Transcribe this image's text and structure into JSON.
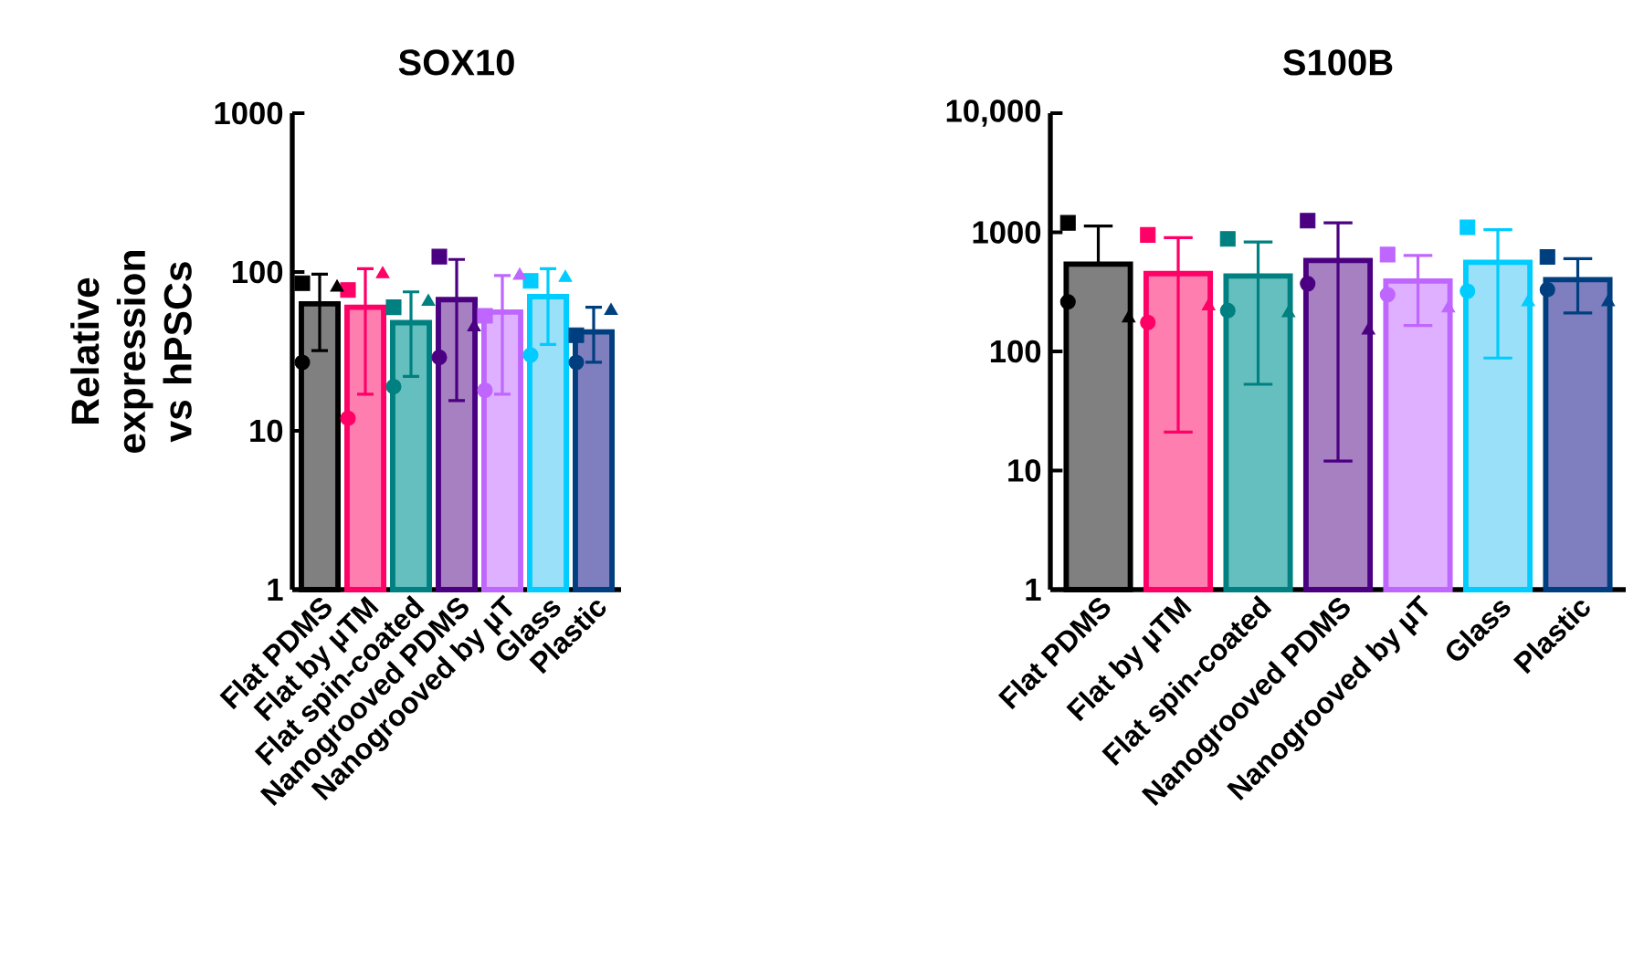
{
  "chart_data": [
    {
      "type": "bar",
      "title": "SOX10",
      "ylabel": "Relative expression vs hPSCs",
      "log": true,
      "categories": [
        "Flat PDMS",
        "Flat by µTM",
        "Flat spin-coated",
        "Nanogrooved PDMS",
        "Nanogrooved by µT",
        "Glass",
        "Plastic"
      ],
      "ylim": [
        1,
        1000
      ],
      "yticks": [
        1,
        10,
        100,
        1000
      ],
      "series": [
        {
          "type": "bar",
          "colors": [
            "#808080",
            "#ff7eb0",
            "#66bfbf",
            "#a680c0",
            "#dfb0ff",
            "#99e0f8",
            "#7f7fc0"
          ],
          "values": [
            63,
            60,
            48,
            67,
            56,
            70,
            42
          ],
          "errors": [
            [
              32,
              97
            ],
            [
              17,
              105
            ],
            [
              22,
              75
            ],
            [
              15.5,
              120
            ],
            [
              17,
              95
            ],
            [
              35,
              105
            ],
            [
              27,
              60
            ]
          ]
        },
        {
          "type": "scatter",
          "marker": "square",
          "x": [
            "Flat PDMS",
            "Flat by µTM",
            "Flat spin-coated",
            "Nanogrooved PDMS",
            "Nanogrooved by µT",
            "Glass",
            "Plastic"
          ],
          "colors": [
            "#000000",
            "#ff0066",
            "#008080",
            "#4b0082",
            "#bf66ff",
            "#00ccff",
            "#003f7f"
          ],
          "values": [
            85,
            77,
            60,
            125,
            53,
            88,
            40
          ]
        },
        {
          "type": "scatter",
          "marker": "triangle",
          "x": [
            "Flat PDMS",
            "Flat by µTM",
            "Flat spin-coated",
            "Nanogrooved PDMS",
            "Nanogrooved by µT",
            "Glass",
            "Plastic"
          ],
          "colors": [
            "#000000",
            "#ff0066",
            "#008080",
            "#4b0082",
            "#bf66ff",
            "#00ccff",
            "#003f7f"
          ],
          "values": [
            80,
            97,
            65,
            45,
            95,
            92,
            57
          ]
        },
        {
          "type": "scatter",
          "marker": "circle",
          "x": [
            "Flat PDMS",
            "Flat by µTM",
            "Flat spin-coated",
            "Nanogrooved PDMS",
            "Nanogrooved by µT",
            "Glass",
            "Plastic"
          ],
          "colors": [
            "#000000",
            "#ff0066",
            "#008080",
            "#4b0082",
            "#bf66ff",
            "#00ccff",
            "#003f7f"
          ],
          "values": [
            27,
            12,
            19,
            29,
            18,
            30,
            27
          ]
        }
      ]
    },
    {
      "type": "bar",
      "title": "S100B",
      "log": true,
      "categories": [
        "Flat PDMS",
        "Flat by µTM",
        "Flat spin-coated",
        "Nanogrooved PDMS",
        "Nanogrooved by µT",
        "Glass",
        "Plastic"
      ],
      "ylim": [
        1,
        10000
      ],
      "yticks": [
        1,
        10,
        100,
        1000,
        {
          "value": 10000,
          "label": "10,000"
        }
      ],
      "series": [
        {
          "type": "bar",
          "colors": [
            "#808080",
            "#ff7eb0",
            "#66bfbf",
            "#a680c0",
            "#dfb0ff",
            "#99e0f8",
            "#7f7fc0"
          ],
          "values": [
            540,
            450,
            430,
            580,
            390,
            560,
            400
          ],
          "errors": [
            [
              540,
              1130
            ],
            [
              21,
              900
            ],
            [
              53,
              830
            ],
            [
              12,
              1200
            ],
            [
              165,
              640
            ],
            [
              88,
              1050
            ],
            [
              210,
              600
            ]
          ]
        },
        {
          "type": "scatter",
          "marker": "square",
          "x": [
            "Flat PDMS",
            "Flat by µTM",
            "Flat spin-coated",
            "Nanogrooved PDMS",
            "Nanogrooved by µT",
            "Glass",
            "Plastic"
          ],
          "colors": [
            "#000000",
            "#ff0066",
            "#008080",
            "#4b0082",
            "#bf66ff",
            "#00ccff",
            "#003f7f"
          ],
          "values": [
            1200,
            950,
            880,
            1250,
            650,
            1100,
            620
          ]
        },
        {
          "type": "scatter",
          "marker": "triangle",
          "x": [
            "Flat PDMS",
            "Flat by µTM",
            "Flat spin-coated",
            "Nanogrooved PDMS",
            "Nanogrooved by µT",
            "Glass",
            "Plastic"
          ],
          "colors": [
            "#000000",
            "#ff0066",
            "#008080",
            "#4b0082",
            "#bf66ff",
            "#00ccff",
            "#003f7f"
          ],
          "values": [
            190,
            240,
            210,
            150,
            230,
            260,
            260
          ]
        },
        {
          "type": "scatter",
          "marker": "circle",
          "x": [
            "Flat PDMS",
            "Flat by µTM",
            "Flat spin-coated",
            "Nanogrooved PDMS",
            "Nanogrooved by µT",
            "Glass",
            "Plastic"
          ],
          "colors": [
            "#000000",
            "#ff0066",
            "#008080",
            "#4b0082",
            "#bf66ff",
            "#00ccff",
            "#003f7f"
          ],
          "values": [
            260,
            175,
            220,
            370,
            300,
            320,
            330
          ]
        }
      ]
    }
  ]
}
